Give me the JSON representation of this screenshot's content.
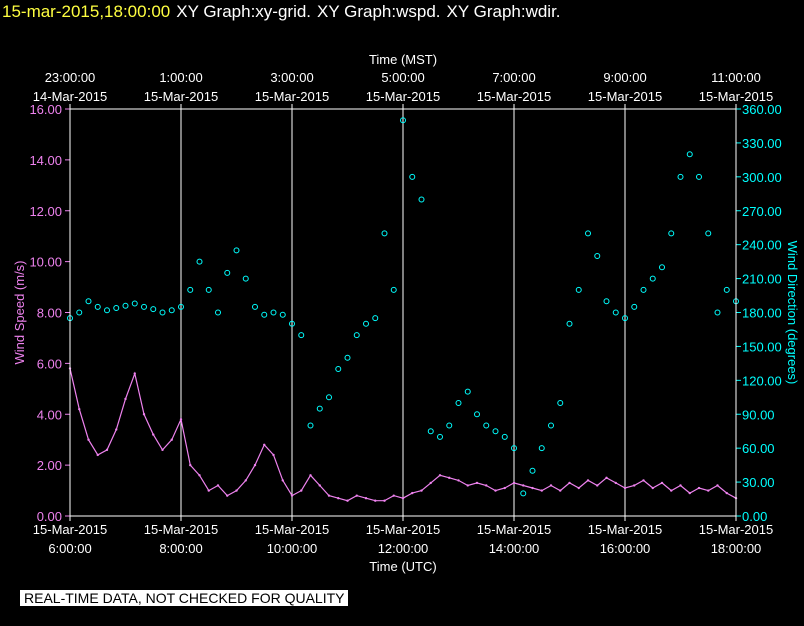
{
  "header": {
    "timestamp": "15-mar-2015,18:00:00",
    "titles": [
      "XY Graph:xy-grid.",
      "XY Graph:wspd.",
      "XY Graph:wdir."
    ]
  },
  "footer": {
    "notice": "REAL-TIME DATA, NOT CHECKED FOR QUALITY"
  },
  "colors": {
    "background": "#000000",
    "grid": "#ffffff",
    "wspd": "#ee82ee",
    "wdir": "#00ffff",
    "timestamp": "#ffff40"
  },
  "chart_data": {
    "type": "line",
    "title": "",
    "grid": true,
    "x_top_label": "Time (MST)",
    "x_bottom_label": "Time (UTC)",
    "xlim": [
      "2015-03-15 06:00",
      "2015-03-15 18:00"
    ],
    "x_ticks_utc": [
      {
        "x": "2015-03-15 06:00",
        "date": "15-Mar-2015",
        "time": "6:00:00"
      },
      {
        "x": "2015-03-15 08:00",
        "date": "15-Mar-2015",
        "time": "8:00:00"
      },
      {
        "x": "2015-03-15 10:00",
        "date": "15-Mar-2015",
        "time": "10:00:00"
      },
      {
        "x": "2015-03-15 12:00",
        "date": "15-Mar-2015",
        "time": "12:00:00"
      },
      {
        "x": "2015-03-15 14:00",
        "date": "15-Mar-2015",
        "time": "14:00:00"
      },
      {
        "x": "2015-03-15 16:00",
        "date": "15-Mar-2015",
        "time": "16:00:00"
      },
      {
        "x": "2015-03-15 18:00",
        "date": "15-Mar-2015",
        "time": "18:00:00"
      }
    ],
    "x_ticks_mst": [
      {
        "x": "2015-03-15 06:00",
        "time": "23:00:00",
        "date": "14-Mar-2015"
      },
      {
        "x": "2015-03-15 08:00",
        "time": "1:00:00",
        "date": "15-Mar-2015"
      },
      {
        "x": "2015-03-15 10:00",
        "time": "3:00:00",
        "date": "15-Mar-2015"
      },
      {
        "x": "2015-03-15 12:00",
        "time": "5:00:00",
        "date": "15-Mar-2015"
      },
      {
        "x": "2015-03-15 14:00",
        "time": "7:00:00",
        "date": "15-Mar-2015"
      },
      {
        "x": "2015-03-15 16:00",
        "time": "9:00:00",
        "date": "15-Mar-2015"
      },
      {
        "x": "2015-03-15 18:00",
        "time": "11:00:00",
        "date": "15-Mar-2015"
      }
    ],
    "y_left": {
      "label": "Wind Speed (m/s)",
      "lim": [
        0,
        16
      ],
      "ticks": [
        "0.00",
        "2.00",
        "4.00",
        "6.00",
        "8.00",
        "10.00",
        "12.00",
        "14.00",
        "16.00"
      ]
    },
    "y_right": {
      "label": "Wind Direction (degrees)",
      "lim": [
        0,
        360
      ],
      "ticks": [
        "0.00",
        "30.00",
        "60.00",
        "90.00",
        "120.00",
        "150.00",
        "180.00",
        "210.00",
        "240.00",
        "270.00",
        "300.00",
        "330.00",
        "360.00"
      ]
    },
    "series": [
      {
        "name": "Wind Speed",
        "axis": "left",
        "style": "line",
        "x": [
          "2015-03-15 06:00",
          "2015-03-15 06:10",
          "2015-03-15 06:20",
          "2015-03-15 06:30",
          "2015-03-15 06:40",
          "2015-03-15 06:50",
          "2015-03-15 07:00",
          "2015-03-15 07:10",
          "2015-03-15 07:20",
          "2015-03-15 07:30",
          "2015-03-15 07:40",
          "2015-03-15 07:50",
          "2015-03-15 08:00",
          "2015-03-15 08:10",
          "2015-03-15 08:20",
          "2015-03-15 08:30",
          "2015-03-15 08:40",
          "2015-03-15 08:50",
          "2015-03-15 09:00",
          "2015-03-15 09:10",
          "2015-03-15 09:20",
          "2015-03-15 09:30",
          "2015-03-15 09:40",
          "2015-03-15 09:50",
          "2015-03-15 10:00",
          "2015-03-15 10:10",
          "2015-03-15 10:20",
          "2015-03-15 10:30",
          "2015-03-15 10:40",
          "2015-03-15 10:50",
          "2015-03-15 11:00",
          "2015-03-15 11:10",
          "2015-03-15 11:20",
          "2015-03-15 11:30",
          "2015-03-15 11:40",
          "2015-03-15 11:50",
          "2015-03-15 12:00",
          "2015-03-15 12:10",
          "2015-03-15 12:20",
          "2015-03-15 12:30",
          "2015-03-15 12:40",
          "2015-03-15 12:50",
          "2015-03-15 13:00",
          "2015-03-15 13:10",
          "2015-03-15 13:20",
          "2015-03-15 13:30",
          "2015-03-15 13:40",
          "2015-03-15 13:50",
          "2015-03-15 14:00",
          "2015-03-15 14:10",
          "2015-03-15 14:20",
          "2015-03-15 14:30",
          "2015-03-15 14:40",
          "2015-03-15 14:50",
          "2015-03-15 15:00",
          "2015-03-15 15:10",
          "2015-03-15 15:20",
          "2015-03-15 15:30",
          "2015-03-15 15:40",
          "2015-03-15 15:50",
          "2015-03-15 16:00",
          "2015-03-15 16:10",
          "2015-03-15 16:20",
          "2015-03-15 16:30",
          "2015-03-15 16:40",
          "2015-03-15 16:50",
          "2015-03-15 17:00",
          "2015-03-15 17:10",
          "2015-03-15 17:20",
          "2015-03-15 17:30",
          "2015-03-15 17:40",
          "2015-03-15 17:50",
          "2015-03-15 18:00"
        ],
        "values": [
          5.8,
          4.2,
          3.0,
          2.4,
          2.6,
          3.4,
          4.6,
          5.6,
          4.0,
          3.2,
          2.6,
          3.0,
          3.8,
          2.0,
          1.6,
          1.0,
          1.2,
          0.8,
          1.0,
          1.4,
          2.0,
          2.8,
          2.4,
          1.4,
          0.8,
          1.0,
          1.6,
          1.2,
          0.8,
          0.7,
          0.6,
          0.8,
          0.7,
          0.6,
          0.6,
          0.8,
          0.7,
          0.9,
          1.0,
          1.3,
          1.6,
          1.5,
          1.4,
          1.2,
          1.3,
          1.2,
          1.0,
          1.1,
          1.3,
          1.2,
          1.1,
          1.0,
          1.2,
          1.0,
          1.3,
          1.1,
          1.4,
          1.2,
          1.5,
          1.3,
          1.1,
          1.2,
          1.4,
          1.1,
          1.3,
          1.0,
          1.2,
          0.9,
          1.1,
          1.0,
          1.2,
          0.9,
          0.7
        ]
      },
      {
        "name": "Wind Direction",
        "axis": "right",
        "style": "markers",
        "x": [
          "2015-03-15 06:00",
          "2015-03-15 06:10",
          "2015-03-15 06:20",
          "2015-03-15 06:30",
          "2015-03-15 06:40",
          "2015-03-15 06:50",
          "2015-03-15 07:00",
          "2015-03-15 07:10",
          "2015-03-15 07:20",
          "2015-03-15 07:30",
          "2015-03-15 07:40",
          "2015-03-15 07:50",
          "2015-03-15 08:00",
          "2015-03-15 08:10",
          "2015-03-15 08:20",
          "2015-03-15 08:30",
          "2015-03-15 08:40",
          "2015-03-15 08:50",
          "2015-03-15 09:00",
          "2015-03-15 09:10",
          "2015-03-15 09:20",
          "2015-03-15 09:30",
          "2015-03-15 09:40",
          "2015-03-15 09:50",
          "2015-03-15 10:00",
          "2015-03-15 10:10",
          "2015-03-15 10:20",
          "2015-03-15 10:30",
          "2015-03-15 10:40",
          "2015-03-15 10:50",
          "2015-03-15 11:00",
          "2015-03-15 11:10",
          "2015-03-15 11:20",
          "2015-03-15 11:30",
          "2015-03-15 11:40",
          "2015-03-15 11:50",
          "2015-03-15 12:00",
          "2015-03-15 12:10",
          "2015-03-15 12:20",
          "2015-03-15 12:30",
          "2015-03-15 12:40",
          "2015-03-15 12:50",
          "2015-03-15 13:00",
          "2015-03-15 13:10",
          "2015-03-15 13:20",
          "2015-03-15 13:30",
          "2015-03-15 13:40",
          "2015-03-15 13:50",
          "2015-03-15 14:00",
          "2015-03-15 14:10",
          "2015-03-15 14:20",
          "2015-03-15 14:30",
          "2015-03-15 14:40",
          "2015-03-15 14:50",
          "2015-03-15 15:00",
          "2015-03-15 15:10",
          "2015-03-15 15:20",
          "2015-03-15 15:30",
          "2015-03-15 15:40",
          "2015-03-15 15:50",
          "2015-03-15 16:00",
          "2015-03-15 16:10",
          "2015-03-15 16:20",
          "2015-03-15 16:30",
          "2015-03-15 16:40",
          "2015-03-15 16:50",
          "2015-03-15 17:00",
          "2015-03-15 17:10",
          "2015-03-15 17:20",
          "2015-03-15 17:30",
          "2015-03-15 17:40",
          "2015-03-15 17:50",
          "2015-03-15 18:00"
        ],
        "values": [
          175,
          180,
          190,
          185,
          182,
          184,
          186,
          188,
          185,
          183,
          180,
          182,
          185,
          200,
          225,
          200,
          180,
          215,
          235,
          210,
          185,
          178,
          180,
          178,
          170,
          160,
          80,
          95,
          105,
          130,
          140,
          160,
          170,
          175,
          250,
          200,
          350,
          300,
          280,
          75,
          70,
          80,
          100,
          110,
          90,
          80,
          75,
          70,
          60,
          20,
          40,
          60,
          80,
          100,
          170,
          200,
          250,
          230,
          190,
          180,
          175,
          185,
          200,
          210,
          220,
          250,
          300,
          320,
          300,
          250,
          180,
          200,
          190
        ]
      }
    ]
  }
}
